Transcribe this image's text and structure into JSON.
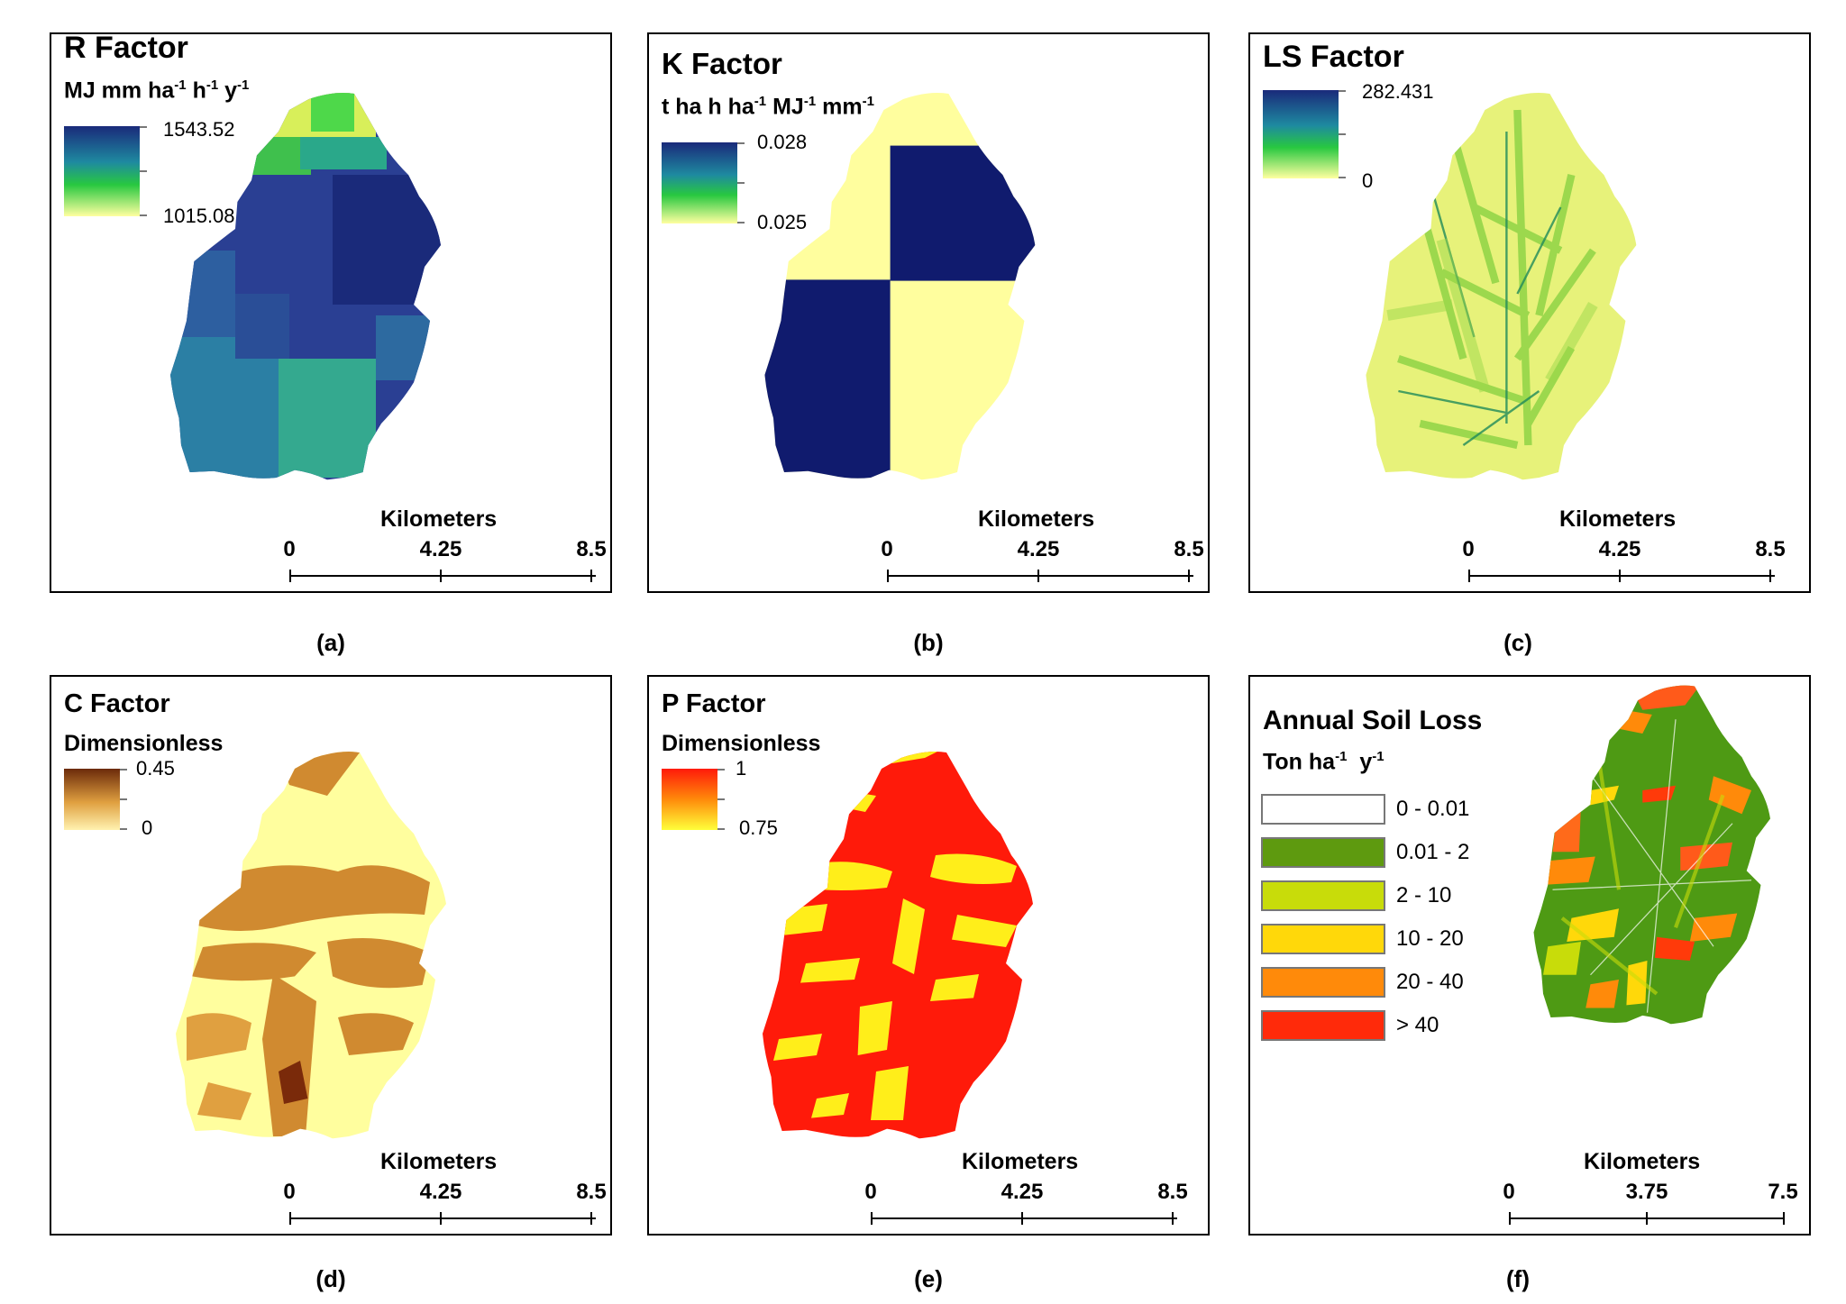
{
  "panels": {
    "a": {
      "title": "R Factor",
      "unit_pre": "MJ mm ha",
      "unit_sup1": "-1",
      "unit_mid": "h",
      "unit_sup2": "-1",
      "unit_post": "y",
      "unit_sup3": "-1",
      "max": "1543.52",
      "min": "1015.08",
      "caption": "(a)"
    },
    "b": {
      "title": "K Factor",
      "unit_pre": "t ha h ha",
      "unit_sup1": "-1",
      "unit_mid": "MJ",
      "unit_sup2": "-1",
      "unit_post": "mm",
      "unit_sup3": "-1",
      "max": "0.028",
      "min": "0.025",
      "caption": "(b)"
    },
    "c": {
      "title": "LS Factor",
      "max": "282.431",
      "min": "0",
      "caption": "(c)"
    },
    "d": {
      "title": "C Factor",
      "unit": "Dimensionless",
      "max": "0.45",
      "min": "0",
      "caption": "(d)"
    },
    "e": {
      "title": "P Factor",
      "unit": "Dimensionless",
      "max": "1",
      "min": "0.75",
      "caption": "(e)"
    },
    "f": {
      "title": "Annual Soil Loss",
      "unit_pre": "Ton ha",
      "unit_sup1": "-1",
      "unit_post": "y",
      "unit_sup2": "-1",
      "caption": "(f)",
      "classes": [
        {
          "label": "0 - 0.01",
          "color": "#ffffff"
        },
        {
          "label": "0.01 - 2",
          "color": "#5e9a0f"
        },
        {
          "label": "2 - 10",
          "color": "#c8dc0a"
        },
        {
          "label": "10 - 20",
          "color": "#ffd80a"
        },
        {
          "label": "20 - 40",
          "color": "#ff8a0a"
        },
        {
          "label": "> 40",
          "color": "#ff2a0a"
        }
      ]
    }
  },
  "scalebar": {
    "title": "Kilometers",
    "v0": "0",
    "v1": "4.25",
    "v2": "8.5"
  },
  "scalebar_f": {
    "title": "Kilometers",
    "v0": "0",
    "v1": "3.75",
    "v2": "7.5"
  }
}
